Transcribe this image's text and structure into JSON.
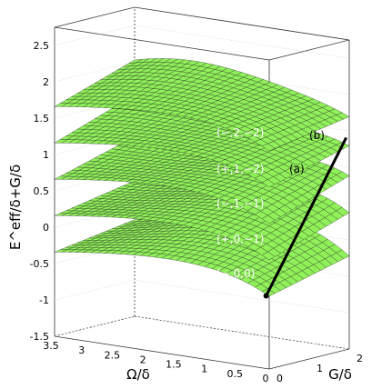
{
  "chart_data": {
    "type": "surface3d",
    "zlabel": "E^eff/δ+G/δ",
    "xlabel": "Ω/δ",
    "ylabel": "G/δ",
    "zlim": [
      -1.5,
      2.75
    ],
    "xlim": [
      0,
      3.5
    ],
    "ylim": [
      0,
      2
    ],
    "grid": true,
    "surface_color": "#90f05a",
    "z_ticks": [
      "-1.5",
      "-1",
      "-0.5",
      "0",
      "0.5",
      "1",
      "1.5",
      "2",
      "2.5"
    ],
    "x_ticks": [
      "3.5",
      "3",
      "2.5",
      "2",
      "1.5",
      "1",
      "0.5",
      "0"
    ],
    "y_ticks": [
      "0",
      "1",
      "2"
    ],
    "surfaces": [
      {
        "label": "(−,0,0)",
        "z_at_origin": -0.5
      },
      {
        "label": "(+,0,−1)",
        "z_at_origin": 0
      },
      {
        "label": "(−,1,−1)",
        "z_at_origin": 0.5
      },
      {
        "label": "(+,1,−2)",
        "z_at_origin": 1
      },
      {
        "label": "(−,2,−2)",
        "z_at_origin": 1.5
      }
    ],
    "annotations": [
      {
        "text": "(−,2,−2)",
        "color": "white"
      },
      {
        "text": "(+,1,−2)",
        "color": "white"
      },
      {
        "text": "(−,1,−1)",
        "color": "white"
      },
      {
        "text": "(+,0,−1)",
        "color": "white"
      },
      {
        "text": "(−,0,0)",
        "color": "white"
      },
      {
        "text": "(a)",
        "color": "black"
      },
      {
        "text": "(b)",
        "color": "black"
      }
    ]
  }
}
